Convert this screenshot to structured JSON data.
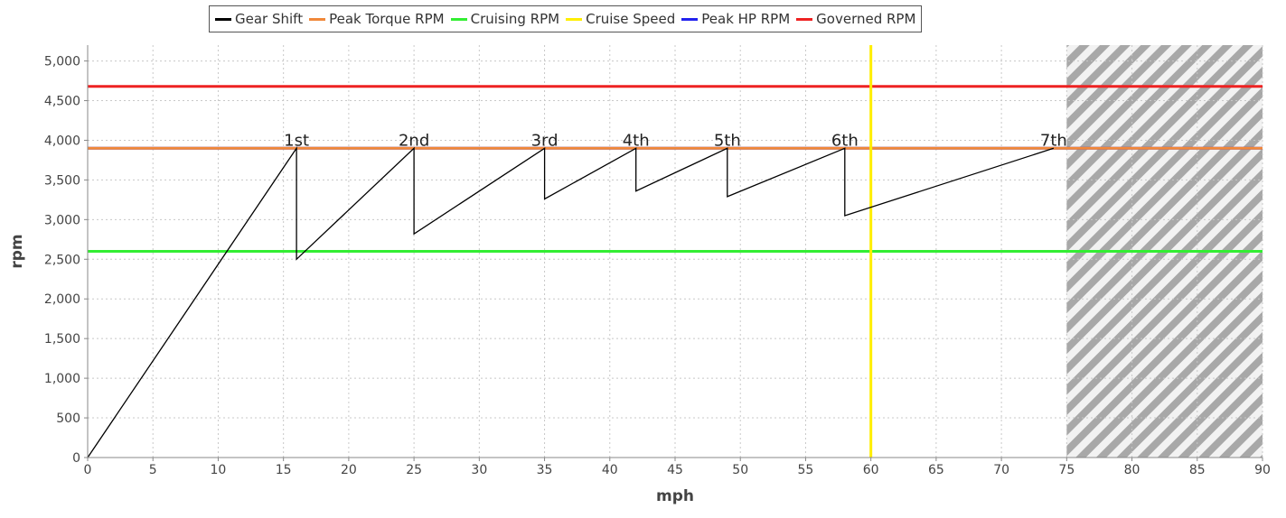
{
  "chart_data": {
    "type": "line",
    "xlabel": "mph",
    "ylabel": "rpm",
    "xlim": [
      0,
      90
    ],
    "ylim": [
      0,
      5200
    ],
    "x_ticks": [
      0,
      5,
      10,
      15,
      20,
      25,
      30,
      35,
      40,
      45,
      50,
      55,
      60,
      65,
      70,
      75,
      80,
      85,
      90
    ],
    "y_ticks": [
      0,
      500,
      1000,
      1500,
      2000,
      2500,
      3000,
      3500,
      4000,
      4500,
      5000
    ],
    "y_tick_labels": [
      "0",
      "500",
      "1,000",
      "1,500",
      "2,000",
      "2,500",
      "3,000",
      "3,500",
      "4,000",
      "4,500",
      "5,000"
    ],
    "grid": true,
    "legend_position": "top-center",
    "series": [
      {
        "name": "Gear Shift",
        "color": "#000000",
        "points": [
          [
            0,
            0
          ],
          [
            16,
            3900
          ],
          [
            16,
            2500
          ],
          [
            25,
            3900
          ],
          [
            25,
            2820
          ],
          [
            35,
            3900
          ],
          [
            35,
            3260
          ],
          [
            42,
            3900
          ],
          [
            42,
            3360
          ],
          [
            49,
            3900
          ],
          [
            49,
            3290
          ],
          [
            58,
            3900
          ],
          [
            58,
            3050
          ],
          [
            74,
            3900
          ]
        ]
      },
      {
        "name": "Peak Torque RPM",
        "color": "#f0883a",
        "y": 3900
      },
      {
        "name": "Cruising RPM",
        "color": "#33ee33",
        "y": 2600
      },
      {
        "name": "Cruise Speed",
        "color": "#ffee00",
        "x": 60
      },
      {
        "name": "Peak HP RPM",
        "color": "#2222ee",
        "y": 3900
      },
      {
        "name": "Governed RPM",
        "color": "#ee2222",
        "y": 4680
      }
    ],
    "gear_labels": [
      {
        "text": "1st",
        "x": 16,
        "y": 3900
      },
      {
        "text": "2nd",
        "x": 25,
        "y": 3900
      },
      {
        "text": "3rd",
        "x": 35,
        "y": 3900
      },
      {
        "text": "4th",
        "x": 42,
        "y": 3900
      },
      {
        "text": "5th",
        "x": 49,
        "y": 3900
      },
      {
        "text": "6th",
        "x": 58,
        "y": 3900
      },
      {
        "text": "7th",
        "x": 74,
        "y": 3900
      }
    ],
    "shaded_region": {
      "x_from": 75,
      "x_to": 90,
      "pattern": "diagonal-hatch"
    }
  }
}
